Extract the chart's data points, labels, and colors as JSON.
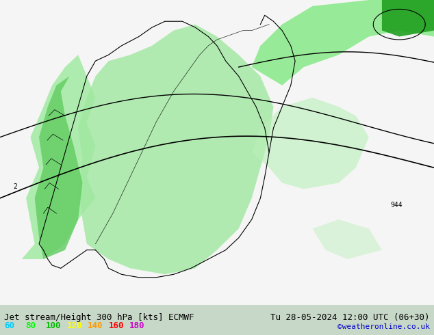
{
  "title_left": "Jet stream/Height 300 hPa [kts] ECMWF",
  "title_right": "Tu 28-05-2024 12:00 UTC (06+30)",
  "credit": "©weatheronline.co.uk",
  "legend_values": [
    "60",
    "80",
    "100",
    "120",
    "140",
    "160",
    "180"
  ],
  "legend_colors": [
    "#00ccff",
    "#00ff00",
    "#00bb00",
    "#ffff00",
    "#ff9900",
    "#ff0000",
    "#cc00cc"
  ],
  "background_color": "#f0f0f0",
  "map_bg": "#e8e8e8",
  "label_fontsize": 9,
  "credit_color": "#0000cc",
  "title_color": "#000000",
  "bottom_bar_color": "#e0e0e0",
  "figsize": [
    6.34,
    4.9
  ],
  "dpi": 100
}
